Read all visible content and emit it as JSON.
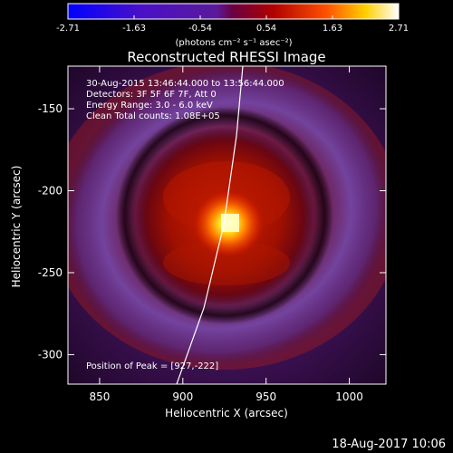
{
  "chart_data": {
    "type": "heatmap",
    "title": "Reconstructed RHESSI Image",
    "xlabel": "Heliocentric X (arcsec)",
    "ylabel": "Heliocentric Y (arcsec)",
    "xlim": [
      831,
      1022
    ],
    "ylim": [
      -318,
      -124
    ],
    "x_ticks": [
      850,
      900,
      950,
      1000
    ],
    "y_ticks": [
      -150,
      -200,
      -250,
      -300
    ],
    "colorbar": {
      "range": [
        -2.71,
        2.71
      ],
      "ticks": [
        "-2.71",
        "-1.63",
        "-0.54",
        "0.54",
        "1.63",
        "2.71"
      ],
      "label": "(photons cm⁻² s⁻¹ asec⁻²)"
    },
    "annotations": [
      "30-Aug-2015 13:46:44.000 to 13:56:44.000",
      "Detectors: 3F 5F 6F 7F, Att 0",
      "Energy Range: 3.0 - 6.0 keV",
      "Clean    Total counts: 1.08E+05"
    ],
    "peak_label": "Position of Peak = [927,-222]",
    "peak": [
      927,
      -222
    ]
  },
  "footer": {
    "timestamp": "18-Aug-2017 10:06"
  }
}
